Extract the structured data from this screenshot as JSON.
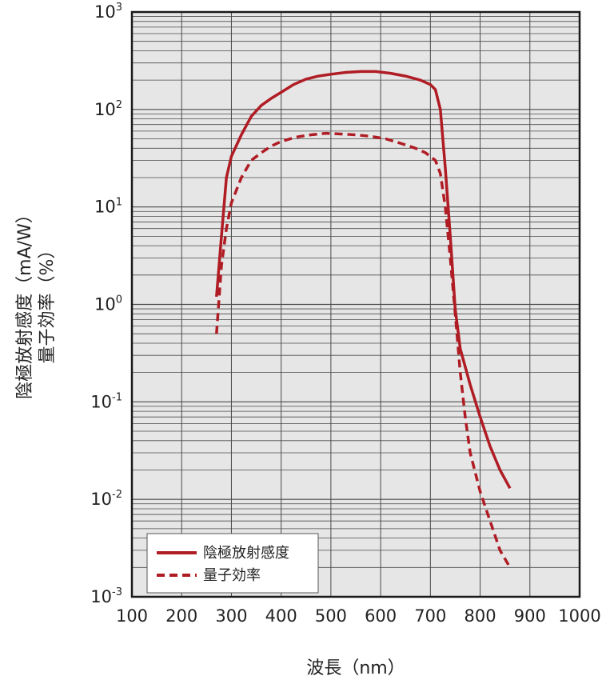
{
  "chart_data": {
    "type": "line",
    "xlabel": "波長（nm）",
    "ylabel_lines": [
      "陰極放射感度（mA/W）",
      "量子効率（%）"
    ],
    "x_ticks": [
      "100",
      "200",
      "300",
      "400",
      "500",
      "600",
      "700",
      "800",
      "900",
      "1000"
    ],
    "y_ticks": [
      {
        "base": "10",
        "exp": "3"
      },
      {
        "base": "10",
        "exp": "2"
      },
      {
        "base": "10",
        "exp": "1"
      },
      {
        "base": "10",
        "exp": "0"
      },
      {
        "base": "10",
        "exp": "-1"
      },
      {
        "base": "10",
        "exp": "-2"
      },
      {
        "base": "10",
        "exp": "-3"
      }
    ],
    "xlim": [
      100,
      1000
    ],
    "ylim": [
      0.001,
      1000
    ],
    "yscale": "log",
    "grid": true,
    "legend_position": "bottom-left",
    "series": [
      {
        "name": "陰極放射感度",
        "color": "#b01c24",
        "style": "solid",
        "points": [
          [
            270,
            1.2
          ],
          [
            280,
            5
          ],
          [
            290,
            20
          ],
          [
            300,
            33
          ],
          [
            320,
            55
          ],
          [
            340,
            85
          ],
          [
            360,
            110
          ],
          [
            380,
            130
          ],
          [
            400,
            150
          ],
          [
            425,
            180
          ],
          [
            450,
            205
          ],
          [
            475,
            220
          ],
          [
            500,
            230
          ],
          [
            530,
            240
          ],
          [
            560,
            245
          ],
          [
            590,
            245
          ],
          [
            620,
            235
          ],
          [
            650,
            220
          ],
          [
            680,
            200
          ],
          [
            700,
            180
          ],
          [
            710,
            160
          ],
          [
            720,
            100
          ],
          [
            730,
            25
          ],
          [
            740,
            5
          ],
          [
            750,
            0.9
          ],
          [
            760,
            0.35
          ],
          [
            780,
            0.15
          ],
          [
            800,
            0.07
          ],
          [
            820,
            0.035
          ],
          [
            840,
            0.02
          ],
          [
            860,
            0.013
          ]
        ]
      },
      {
        "name": "量子効率",
        "color": "#b01c24",
        "style": "dashed",
        "points": [
          [
            270,
            0.5
          ],
          [
            280,
            2.5
          ],
          [
            290,
            6
          ],
          [
            300,
            11
          ],
          [
            320,
            20
          ],
          [
            340,
            30
          ],
          [
            360,
            36
          ],
          [
            380,
            42
          ],
          [
            400,
            47
          ],
          [
            430,
            52
          ],
          [
            460,
            55
          ],
          [
            490,
            57
          ],
          [
            520,
            56
          ],
          [
            550,
            55
          ],
          [
            580,
            53
          ],
          [
            610,
            50
          ],
          [
            640,
            45
          ],
          [
            670,
            40
          ],
          [
            690,
            36
          ],
          [
            710,
            30
          ],
          [
            720,
            22
          ],
          [
            730,
            10
          ],
          [
            740,
            3
          ],
          [
            750,
            0.8
          ],
          [
            760,
            0.2
          ],
          [
            770,
            0.07
          ],
          [
            780,
            0.03
          ],
          [
            800,
            0.012
          ],
          [
            820,
            0.006
          ],
          [
            840,
            0.003
          ],
          [
            860,
            0.002
          ]
        ]
      }
    ]
  }
}
